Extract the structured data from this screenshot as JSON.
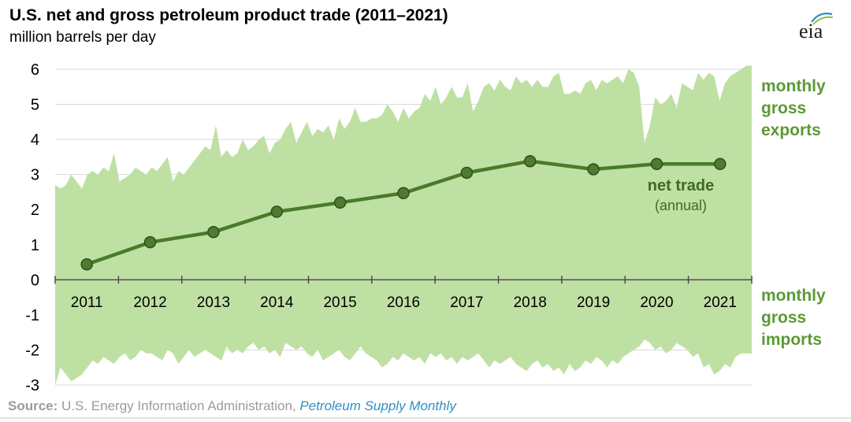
{
  "title": "U.S. net and gross petroleum product trade (2011–2021)",
  "subtitle": "million barrels per day",
  "logo_text": "eia",
  "source": {
    "label": "Source:",
    "text": " U.S. Energy Information Administration, ",
    "publication": "Petroleum Supply Monthly"
  },
  "colors": {
    "area_fill": "#bfe0a3",
    "line": "#4a7a2a",
    "marker": "#4f7a30",
    "label_green": "#5a9a34",
    "gridline": "#d9d9d9",
    "axis": "#4d4d4d"
  },
  "chart_data": {
    "type": "area",
    "ylim": [
      -3,
      6
    ],
    "yticks": [
      "6",
      "5",
      "4",
      "3",
      "2",
      "1",
      "0",
      "-1",
      "-2",
      "-3"
    ],
    "ytick_values": [
      6,
      5,
      4,
      3,
      2,
      1,
      0,
      -1,
      -2,
      -3
    ],
    "xlim": [
      2011,
      2022
    ],
    "years": [
      "2011",
      "2012",
      "2013",
      "2014",
      "2015",
      "2016",
      "2017",
      "2018",
      "2019",
      "2020",
      "2021"
    ],
    "exports_label": [
      "monthly",
      "gross",
      "exports"
    ],
    "imports_label": [
      "monthly",
      "gross",
      "imports"
    ],
    "net_label": "net trade",
    "net_sublabel": "(annual)",
    "series": [
      {
        "name": "monthly gross exports",
        "values": [
          2.7,
          2.6,
          2.7,
          3.0,
          2.8,
          2.6,
          3.0,
          3.1,
          3.0,
          3.2,
          3.1,
          3.6,
          2.8,
          2.9,
          3.0,
          3.2,
          3.1,
          3.0,
          3.2,
          3.1,
          3.3,
          3.5,
          2.8,
          3.1,
          3.0,
          3.2,
          3.4,
          3.6,
          3.8,
          3.7,
          4.4,
          3.5,
          3.7,
          3.5,
          3.6,
          4.0,
          3.7,
          3.8,
          4.0,
          4.1,
          3.6,
          3.9,
          4.0,
          4.3,
          4.5,
          3.9,
          4.2,
          4.5,
          4.1,
          4.3,
          4.2,
          4.4,
          4.0,
          4.6,
          4.3,
          4.5,
          4.9,
          4.5,
          4.5,
          4.6,
          4.6,
          4.7,
          5.0,
          4.8,
          4.5,
          4.9,
          4.6,
          4.8,
          4.9,
          5.3,
          5.1,
          5.5,
          5.0,
          5.2,
          5.5,
          5.2,
          5.2,
          5.6,
          4.8,
          5.1,
          5.5,
          5.6,
          5.4,
          5.7,
          5.5,
          5.4,
          5.8,
          5.6,
          5.7,
          5.5,
          5.7,
          5.5,
          5.5,
          5.8,
          5.9,
          5.3,
          5.3,
          5.4,
          5.3,
          5.6,
          5.7,
          5.4,
          5.7,
          5.6,
          5.7,
          5.8,
          5.6,
          6.0,
          5.9,
          5.5,
          3.9,
          4.4,
          5.2,
          5.0,
          5.1,
          5.3,
          4.9,
          5.6,
          5.5,
          5.4,
          5.9,
          5.7,
          5.9,
          5.8,
          5.1,
          5.6,
          5.8,
          5.9,
          6.0,
          6.1,
          6.1
        ]
      },
      {
        "name": "monthly gross imports",
        "values": [
          -3.0,
          -2.5,
          -2.7,
          -2.9,
          -2.8,
          -2.7,
          -2.5,
          -2.3,
          -2.4,
          -2.2,
          -2.3,
          -2.4,
          -2.2,
          -2.1,
          -2.3,
          -2.2,
          -2.0,
          -2.1,
          -2.1,
          -2.2,
          -2.3,
          -2.0,
          -2.1,
          -2.4,
          -2.2,
          -2.0,
          -2.2,
          -2.1,
          -2.0,
          -2.1,
          -2.2,
          -2.3,
          -1.9,
          -2.1,
          -2.0,
          -2.1,
          -1.9,
          -1.8,
          -2.0,
          -1.9,
          -2.1,
          -2.0,
          -2.2,
          -1.8,
          -1.9,
          -2.0,
          -1.9,
          -2.1,
          -2.2,
          -2.0,
          -2.3,
          -2.2,
          -2.1,
          -2.0,
          -2.2,
          -2.3,
          -2.1,
          -1.9,
          -2.1,
          -2.2,
          -2.3,
          -2.5,
          -2.4,
          -2.2,
          -2.3,
          -2.1,
          -2.2,
          -2.3,
          -2.2,
          -2.4,
          -2.1,
          -2.2,
          -2.1,
          -2.3,
          -2.2,
          -2.4,
          -2.2,
          -2.3,
          -2.2,
          -2.1,
          -2.3,
          -2.5,
          -2.3,
          -2.4,
          -2.3,
          -2.2,
          -2.4,
          -2.5,
          -2.6,
          -2.4,
          -2.3,
          -2.5,
          -2.4,
          -2.6,
          -2.5,
          -2.7,
          -2.4,
          -2.6,
          -2.5,
          -2.3,
          -2.4,
          -2.2,
          -2.3,
          -2.5,
          -2.3,
          -2.4,
          -2.2,
          -2.1,
          -2.0,
          -1.9,
          -1.7,
          -1.8,
          -2.0,
          -1.9,
          -2.1,
          -2.0,
          -1.8,
          -1.9,
          -2.0,
          -2.2,
          -2.1,
          -2.5,
          -2.4,
          -2.7,
          -2.6,
          -2.4,
          -2.5,
          -2.2,
          -2.1,
          -2.1,
          -2.1
        ]
      },
      {
        "name": "net trade (annual)",
        "x": [
          2011,
          2012,
          2013,
          2014,
          2015,
          2016,
          2017,
          2018,
          2019,
          2020,
          2021
        ],
        "values": [
          0.44,
          1.07,
          1.36,
          1.94,
          2.2,
          2.47,
          3.05,
          3.38,
          3.15,
          3.3,
          3.3
        ]
      }
    ]
  }
}
